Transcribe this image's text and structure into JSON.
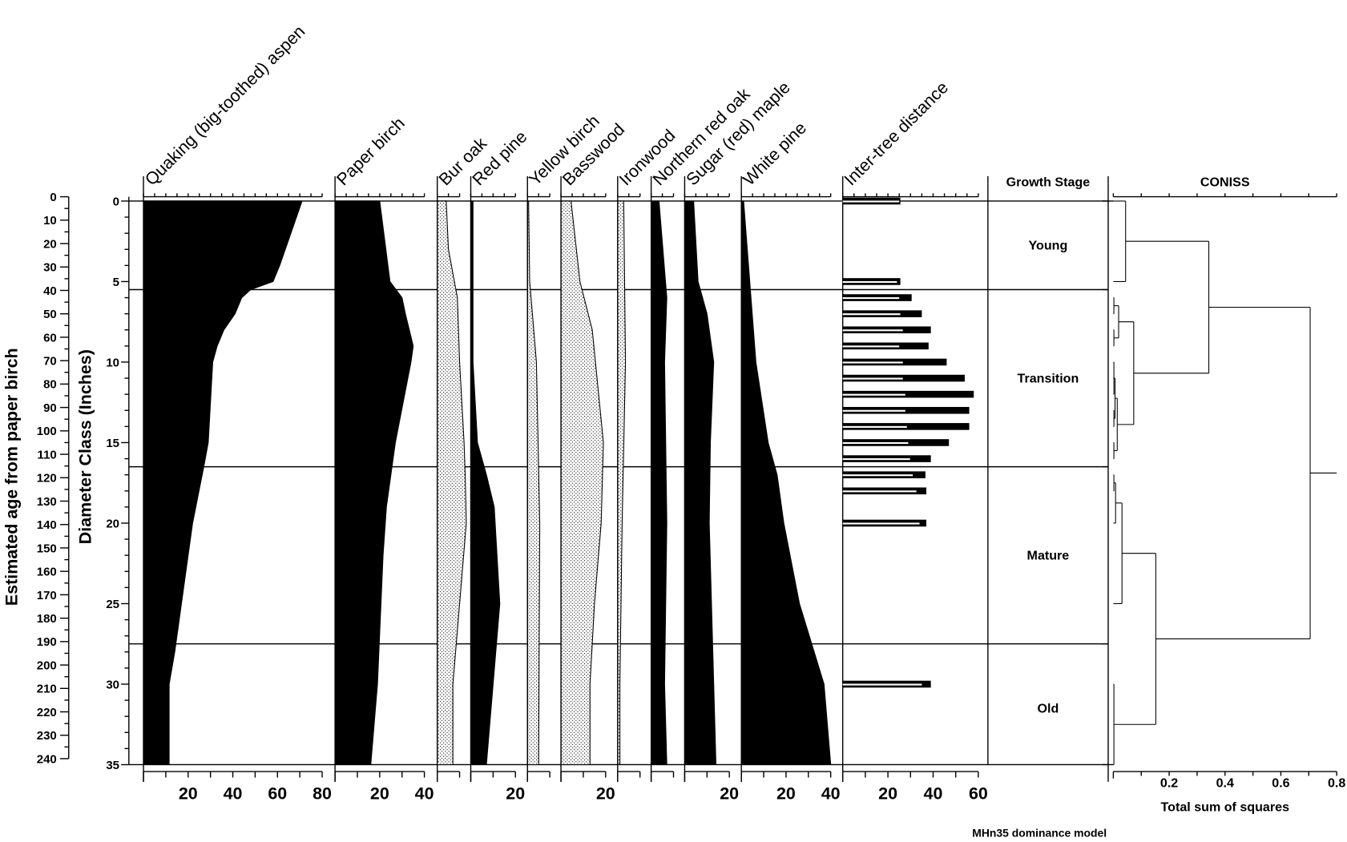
{
  "chart_data": {
    "type": "area",
    "y_axes": {
      "age": {
        "label": "Estimated age from paper birch",
        "range": [
          0,
          240
        ],
        "ticks": [
          0,
          10,
          20,
          30,
          40,
          50,
          60,
          70,
          80,
          90,
          100,
          110,
          120,
          130,
          140,
          150,
          160,
          170,
          180,
          190,
          200,
          210,
          220,
          230,
          240
        ]
      },
      "diameter": {
        "label": "Diameter Class (Inches)",
        "range": [
          0,
          35
        ],
        "ticks": [
          0,
          5,
          10,
          15,
          20,
          25,
          30,
          35
        ]
      }
    },
    "series": [
      {
        "name": "Quaking (big-toothed) aspen",
        "fill": "solid",
        "axis_max": 80,
        "tick_labels": [
          "20",
          "40",
          "60",
          "80"
        ],
        "profile": [
          [
            0,
            71
          ],
          [
            2,
            66
          ],
          [
            4,
            61
          ],
          [
            5,
            58
          ],
          [
            5.5,
            48
          ],
          [
            6,
            44
          ],
          [
            7,
            41
          ],
          [
            8,
            36
          ],
          [
            9,
            33
          ],
          [
            10,
            31
          ],
          [
            15,
            29
          ],
          [
            16.5,
            27
          ],
          [
            20,
            22
          ],
          [
            25,
            17
          ],
          [
            28,
            14
          ],
          [
            30,
            11.5
          ],
          [
            35,
            11.5
          ]
        ]
      },
      {
        "name": "Paper birch",
        "fill": "solid",
        "axis_max": 40,
        "tick_labels": [
          "20",
          "40"
        ],
        "profile": [
          [
            0,
            20
          ],
          [
            5,
            24.6
          ],
          [
            6,
            30
          ],
          [
            7,
            31.5
          ],
          [
            9,
            35
          ],
          [
            10,
            34
          ],
          [
            15,
            27
          ],
          [
            17,
            25
          ],
          [
            19,
            23
          ],
          [
            22,
            21.5
          ],
          [
            30,
            19
          ],
          [
            35,
            16
          ]
        ]
      },
      {
        "name": "Bur oak",
        "fill": "stipple",
        "axis_max": 10,
        "tick_labels": [],
        "profile": [
          [
            0,
            4
          ],
          [
            3,
            5
          ],
          [
            6,
            9
          ],
          [
            10,
            10
          ],
          [
            15,
            12
          ],
          [
            17,
            12.5
          ],
          [
            20,
            13
          ],
          [
            25,
            10
          ],
          [
            30,
            7
          ],
          [
            35,
            7
          ]
        ]
      },
      {
        "name": "Red pine",
        "fill": "solid",
        "axis_max": 20,
        "tick_labels": [
          "20"
        ],
        "profile": [
          [
            0,
            1
          ],
          [
            10,
            1
          ],
          [
            15,
            3
          ],
          [
            17,
            7
          ],
          [
            19,
            10.5
          ],
          [
            25,
            13
          ],
          [
            30,
            10
          ],
          [
            35,
            7
          ]
        ]
      },
      {
        "name": "Yellow birch",
        "fill": "stipple",
        "axis_max": 10,
        "tick_labels": [],
        "profile": [
          [
            0,
            0.5
          ],
          [
            5,
            1
          ],
          [
            10,
            4
          ],
          [
            20,
            5.5
          ],
          [
            35,
            5
          ]
        ]
      },
      {
        "name": "Basswood",
        "fill": "stipple",
        "axis_max": 20,
        "base_solid": 2.5,
        "tick_labels": [
          "20"
        ],
        "profile": [
          [
            0,
            4.5
          ],
          [
            5,
            8.5
          ],
          [
            8,
            14
          ],
          [
            15,
            19
          ],
          [
            20,
            18
          ],
          [
            25,
            15
          ],
          [
            30,
            13
          ],
          [
            35,
            13
          ]
        ]
      },
      {
        "name": "Ironwood",
        "fill": "stipple",
        "axis_max": 10,
        "tick_labels": [],
        "profile": [
          [
            0,
            2.7
          ],
          [
            10,
            3.5
          ],
          [
            20,
            2
          ],
          [
            30,
            1
          ],
          [
            35,
            1
          ]
        ]
      },
      {
        "name": "Northern red oak",
        "fill": "solid",
        "axis_max": 10,
        "tick_labels": [],
        "profile": [
          [
            0,
            3.5
          ],
          [
            6,
            7
          ],
          [
            10,
            6
          ],
          [
            20,
            7
          ],
          [
            30,
            6
          ],
          [
            35,
            7
          ]
        ]
      },
      {
        "name": "Sugar (red) maple",
        "fill": "solid",
        "axis_max": 20,
        "tick_labels": [
          "20"
        ],
        "profile": [
          [
            0,
            4
          ],
          [
            5,
            6
          ],
          [
            7,
            10
          ],
          [
            10,
            13
          ],
          [
            15,
            11.5
          ],
          [
            20,
            11
          ],
          [
            30,
            13
          ],
          [
            35,
            14
          ]
        ]
      },
      {
        "name": "White pine",
        "fill": "solid",
        "axis_max": 40,
        "tick_labels": [
          "20",
          "40"
        ],
        "profile": [
          [
            0,
            1
          ],
          [
            10,
            6.5
          ],
          [
            15,
            12
          ],
          [
            17,
            16
          ],
          [
            20,
            19
          ],
          [
            25,
            26
          ],
          [
            30,
            37
          ],
          [
            35,
            40
          ]
        ]
      }
    ],
    "inter_tree_distance": {
      "name": "Inter-tree distance",
      "axis_max": 60,
      "tick_labels": [
        "20",
        "40",
        "60"
      ],
      "bars": [
        {
          "diameter": 0,
          "value": 25.5,
          "inner": 25
        },
        {
          "diameter": 5,
          "value": 25.5,
          "inner": 24
        },
        {
          "diameter": 6,
          "value": 30.5,
          "inner": 25
        },
        {
          "diameter": 7,
          "value": 35,
          "inner": 25.5
        },
        {
          "diameter": 8,
          "value": 39,
          "inner": 26.6
        },
        {
          "diameter": 9,
          "value": 38,
          "inner": 25
        },
        {
          "diameter": 10,
          "value": 46,
          "inner": 26.6
        },
        {
          "diameter": 11,
          "value": 54,
          "inner": 26.6
        },
        {
          "diameter": 12,
          "value": 58,
          "inner": 27.7
        },
        {
          "diameter": 13,
          "value": 56,
          "inner": 27.7
        },
        {
          "diameter": 14,
          "value": 56,
          "inner": 28.4
        },
        {
          "diameter": 15,
          "value": 47,
          "inner": 29
        },
        {
          "diameter": 16,
          "value": 39,
          "inner": 29.8
        },
        {
          "diameter": 17,
          "value": 36.6,
          "inner": 31
        },
        {
          "diameter": 18,
          "value": 37,
          "inner": 32.6
        },
        {
          "diameter": 20,
          "value": 37,
          "inner": 34
        },
        {
          "diameter": 30,
          "value": 39,
          "inner": 35
        }
      ]
    },
    "growth_stage": {
      "title": "Growth Stage",
      "boundaries": [
        5.5,
        16.5,
        27.5
      ],
      "zones": [
        {
          "label": "Young",
          "center": 2.75
        },
        {
          "label": "Transition",
          "center": 11
        },
        {
          "label": "Mature",
          "center": 22
        },
        {
          "label": "Old",
          "center": 31.5
        }
      ]
    },
    "coniss": {
      "title": "CONISS",
      "xlabel": "Total sum of squares",
      "range": [
        0,
        0.8
      ],
      "tick_labels": [
        "0.2",
        "0.4",
        "0.6",
        "0.8"
      ],
      "tree": {
        "ss": 0.705,
        "children": [
          {
            "ss": 0.342,
            "children": [
              {
                "ss": 0.044,
                "children": [
                  0,
                  5
                ]
              },
              {
                "ss": 0.073,
                "children": [
                  {
                    "ss": 0.019,
                    "children": [
                      {
                        "ss": 0.002,
                        "children": [
                          6,
                          7
                        ]
                      },
                      {
                        "ss": 0.002,
                        "children": [
                          8,
                          9
                        ]
                      }
                    ]
                  },
                  {
                    "ss": 0.014,
                    "children": [
                      {
                        "ss": 0.006,
                        "children": [
                          {
                            "ss": 0.002,
                            "children": [
                              10,
                              11,
                              12
                            ]
                          },
                          {
                            "ss": 0.002,
                            "children": [
                              13,
                              14
                            ]
                          }
                        ]
                      },
                      {
                        "ss": 0.002,
                        "children": [
                          15,
                          16
                        ]
                      }
                    ]
                  }
                ]
              }
            ]
          },
          {
            "ss": 0.152,
            "children": [
              {
                "ss": 0.031,
                "children": [
                  {
                    "ss": 0.008,
                    "children": [
                      {
                        "ss": 0.002,
                        "children": [
                          17,
                          18
                        ]
                      },
                      20
                    ]
                  },
                  25
                ]
              },
              {
                "ss": 0.002,
                "children": [
                  30,
                  35
                ]
              }
            ]
          }
        ]
      }
    },
    "footnote": "MHn35 dominance model"
  }
}
